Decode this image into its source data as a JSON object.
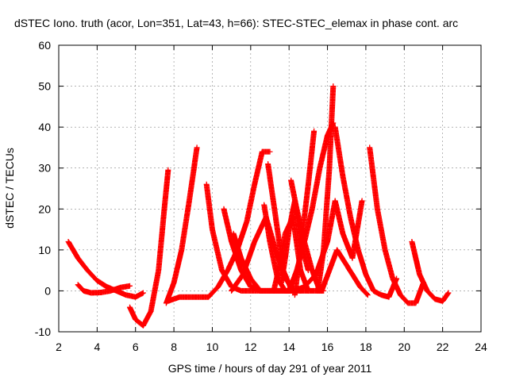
{
  "chart_data": {
    "type": "scatter",
    "title": "dSTEC Iono. truth (acor, Lon=351, Lat=43, h=66): STEC-STEC_elemax in phase cont. arc",
    "xlabel": "GPS time / hours of day 291 of year 2011",
    "ylabel": "dSTEC  / TECUs",
    "xlim": [
      2,
      24
    ],
    "ylim": [
      -10,
      60
    ],
    "xticks": [
      2,
      4,
      6,
      8,
      10,
      12,
      14,
      16,
      18,
      20,
      22,
      24
    ],
    "yticks": [
      -10,
      0,
      10,
      20,
      30,
      40,
      50,
      60
    ],
    "grid": true,
    "marker": "+",
    "color": "#ff0000",
    "series": [
      {
        "x": [
          2.5,
          3.0,
          3.5,
          4.0,
          4.5,
          5.0,
          5.5,
          6.0,
          6.2,
          6.4
        ],
        "y": [
          12,
          8,
          5,
          2.5,
          1.0,
          0,
          -1,
          -1.5,
          -1.0,
          -0.5
        ]
      },
      {
        "x": [
          3.0,
          3.3,
          3.7,
          4.2,
          4.7,
          5.2,
          5.7
        ],
        "y": [
          1.5,
          0,
          -0.5,
          -0.4,
          0,
          0.8,
          1.2
        ]
      },
      {
        "x": [
          5.7,
          6.0,
          6.4,
          6.8,
          7.2,
          7.5,
          7.7
        ],
        "y": [
          -4,
          -7,
          -8.5,
          -5,
          5,
          20,
          29.5
        ]
      },
      {
        "x": [
          7.6,
          8.0,
          8.4,
          8.8,
          9.2
        ],
        "y": [
          -3,
          2,
          10,
          22,
          35
        ]
      },
      {
        "x": [
          7.7,
          8.3,
          8.8,
          9.3,
          9.8,
          10.3,
          10.8,
          11.3,
          11.8,
          12.2,
          12.6,
          13.0
        ],
        "y": [
          -2.5,
          -1.5,
          -1.5,
          -1.5,
          -1.5,
          1,
          5,
          10,
          17,
          26,
          34,
          34
        ]
      },
      {
        "x": [
          9.7,
          10.0,
          10.5,
          11.0,
          11.5,
          12.0,
          12.5
        ],
        "y": [
          26,
          15,
          5,
          1,
          0,
          0,
          0
        ]
      },
      {
        "x": [
          10.6,
          11.0,
          11.5,
          12.0,
          12.5,
          13.0,
          13.5,
          14.0
        ],
        "y": [
          20,
          12,
          5,
          1,
          0,
          0,
          0,
          0
        ]
      },
      {
        "x": [
          11.0,
          11.6,
          12.2,
          12.8,
          13.3,
          13.8,
          14.3
        ],
        "y": [
          0,
          4,
          12,
          18,
          10,
          3,
          0
        ]
      },
      {
        "x": [
          11.1,
          11.5,
          12.0,
          12.5,
          13.0,
          13.6,
          14.2
        ],
        "y": [
          14,
          8,
          3,
          0,
          0,
          0,
          0
        ]
      },
      {
        "x": [
          12.7,
          13.0,
          13.4,
          13.8,
          14.2,
          14.6
        ],
        "y": [
          21,
          12,
          3,
          0,
          0,
          0
        ]
      },
      {
        "x": [
          12.9,
          13.3,
          13.7,
          14.1,
          14.6,
          15.2,
          15.8
        ],
        "y": [
          31,
          18,
          5,
          0.5,
          0,
          0,
          0
        ]
      },
      {
        "x": [
          13.2,
          13.5,
          13.8,
          14.2,
          14.6,
          15.0
        ],
        "y": [
          0,
          6,
          14,
          18,
          5,
          0
        ]
      },
      {
        "x": [
          13.6,
          13.8,
          14.0,
          14.3,
          14.6,
          15.0
        ],
        "y": [
          2,
          8,
          15,
          22,
          12,
          5
        ]
      },
      {
        "x": [
          14.1,
          14.4,
          14.8,
          15.2,
          15.6
        ],
        "y": [
          27,
          20,
          12,
          5,
          0
        ]
      },
      {
        "x": [
          14.0,
          14.4,
          14.8,
          15.2,
          15.6,
          16.0,
          16.3
        ],
        "y": [
          0,
          5,
          12,
          20,
          30,
          38,
          41
        ]
      },
      {
        "x": [
          14.3,
          14.6,
          15.0,
          15.3
        ],
        "y": [
          -1,
          10,
          26,
          39
        ]
      },
      {
        "x": [
          15.5,
          15.8,
          16.1,
          16.3
        ],
        "y": [
          0,
          10,
          30,
          50
        ]
      },
      {
        "x": [
          14.2,
          14.8,
          15.4,
          16.0,
          16.4,
          16.8,
          17.3,
          17.8
        ],
        "y": [
          0,
          1,
          4,
          12,
          22,
          14,
          8,
          22
        ]
      },
      {
        "x": [
          16.4,
          16.8,
          17.2,
          17.6,
          18.0,
          18.4,
          18.8,
          19.2,
          19.6
        ],
        "y": [
          40,
          28,
          18,
          10,
          4,
          0,
          -1,
          -1.5,
          3
        ]
      },
      {
        "x": [
          15.7,
          16.1,
          16.5,
          16.9,
          17.3,
          17.7,
          18.1
        ],
        "y": [
          0,
          5,
          10,
          7,
          4,
          1,
          -1
        ]
      },
      {
        "x": [
          18.2,
          18.6,
          19.0,
          19.4,
          19.8,
          20.2,
          20.6,
          21.0
        ],
        "y": [
          35,
          20,
          10,
          3,
          -1,
          -3,
          -3,
          2
        ]
      },
      {
        "x": [
          20.4,
          20.8,
          21.2,
          21.6,
          22.0,
          22.3
        ],
        "y": [
          12,
          4,
          0,
          -2,
          -2.5,
          -0.5
        ]
      }
    ]
  }
}
